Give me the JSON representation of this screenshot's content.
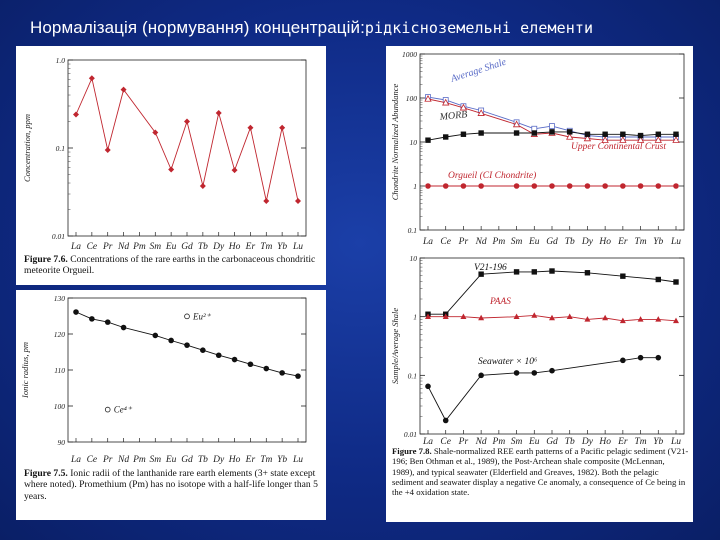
{
  "slide": {
    "title": "Нормалізація (нормування) концентрацій:",
    "subtitle": "рідкісноземельні елементи"
  },
  "figures": {
    "fig76": {
      "caption_label": "Figure 7.6.",
      "caption_text": "Concentrations of the rare earths in the carbonaceous chondritic meteorite Orgueil."
    },
    "fig75": {
      "caption_label": "Figure 7.5.",
      "caption_text": "Ionic radii of the lanthanide rare earth elements (3+ state except where noted). Promethium (Pm) has no isotope with a half-life longer than 5 years."
    },
    "fig78": {
      "caption_label": "Figure 7.8.",
      "caption_text": "Shale-normalized REE earth patterns of a Pacific pelagic sediment (V21-196; Ben Othman et al., 1989), the Post-Archean shale composite (McLennan, 1989), and typical seawater (Elderfield and Greaves, 1982). Both the pelagic sediment and seawater display a negative Ce anomaly, a consequence of Ce being in the +4 oxidation state."
    }
  },
  "chart_data": [
    {
      "id": "fig76",
      "type": "line",
      "ylabel": "Concentration, ppm",
      "yscale": "log",
      "ylim": [
        0.01,
        1.0
      ],
      "yticks": [
        "1.0",
        "0.1",
        "0.01"
      ],
      "categories": [
        "La",
        "Ce",
        "Pr",
        "Nd",
        "Pm",
        "Sm",
        "Eu",
        "Gd",
        "Tb",
        "Dy",
        "Ho",
        "Er",
        "Tm",
        "Yb",
        "Lu"
      ],
      "series": [
        {
          "color": "#c0262f",
          "values": [
            0.24,
            0.62,
            0.095,
            0.46,
            null,
            0.15,
            0.057,
            0.2,
            0.037,
            0.25,
            0.056,
            0.17,
            0.025,
            0.17,
            0.025
          ]
        }
      ]
    },
    {
      "id": "fig75",
      "type": "line",
      "ylabel": "Ionic radius, pm",
      "ylim": [
        90,
        130
      ],
      "yticks": [
        "130",
        "120",
        "110",
        "100",
        "90"
      ],
      "categories": [
        "La",
        "Ce",
        "Pr",
        "Nd",
        "Pm",
        "Sm",
        "Eu",
        "Gd",
        "Tb",
        "Dy",
        "Ho",
        "Er",
        "Tm",
        "Yb",
        "Lu"
      ],
      "series": [
        {
          "color": "#111111",
          "values": [
            126.1,
            124.2,
            123.3,
            121.8,
            null,
            119.6,
            118.2,
            116.9,
            115.5,
            114.1,
            112.9,
            111.6,
            110.4,
            109.2,
            108.3
          ]
        }
      ],
      "annotations": [
        {
          "label": "Eu²⁺",
          "category": "Gd",
          "value": 124.9
        },
        {
          "label": "Ce⁴⁺",
          "category": "Pr",
          "value": 99
        }
      ]
    },
    {
      "id": "fig78a",
      "type": "line",
      "ylabel": "Chondrite Normalized Abundance",
      "yscale": "log",
      "ylim": [
        0.1,
        1000
      ],
      "yticks": [
        "1000",
        "100",
        "10",
        "1",
        "0.1"
      ],
      "categories": [
        "La",
        "Ce",
        "Pr",
        "Nd",
        "Pm",
        "Sm",
        "Eu",
        "Gd",
        "Tb",
        "Dy",
        "Ho",
        "Er",
        "Tm",
        "Yb",
        "Lu"
      ],
      "series": [
        {
          "name": "Average Shale",
          "color": "#5a6cc7",
          "values": [
            105,
            90,
            65,
            52,
            null,
            28,
            20,
            23,
            18,
            14,
            13,
            13,
            13,
            13,
            13
          ]
        },
        {
          "name": "Upper Continental Crust",
          "color": "#c0262f",
          "values": [
            95,
            78,
            60,
            45,
            null,
            25,
            15,
            16,
            13,
            12,
            11,
            11,
            11,
            11,
            11
          ]
        },
        {
          "name": "MORB",
          "color": "#111111",
          "values": [
            11,
            13,
            15,
            16,
            null,
            16,
            16,
            17,
            17,
            15,
            15,
            15,
            14,
            15,
            15
          ]
        },
        {
          "name": "Orgueil (CI Chondrite)",
          "color": "#c0262f",
          "values": [
            1,
            1,
            1,
            1,
            null,
            1,
            1,
            1,
            1,
            1,
            1,
            1,
            1,
            1,
            1
          ]
        }
      ]
    },
    {
      "id": "fig78b",
      "type": "line",
      "ylabel": "Sample/Average Shale",
      "yscale": "log",
      "ylim": [
        0.01,
        10
      ],
      "yticks": [
        "10",
        "1",
        "0.1",
        "0.01"
      ],
      "categories": [
        "La",
        "Ce",
        "Pr",
        "Nd",
        "Pm",
        "Sm",
        "Eu",
        "Gd",
        "Tb",
        "Dy",
        "Ho",
        "Er",
        "Tm",
        "Yb",
        "Lu"
      ],
      "series": [
        {
          "name": "V21-196",
          "color": "#111111",
          "values": [
            1.1,
            1.1,
            null,
            5.3,
            null,
            5.8,
            5.8,
            6.0,
            null,
            5.6,
            null,
            4.9,
            null,
            4.3,
            3.9
          ]
        },
        {
          "name": "PAAS",
          "color": "#c0262f",
          "values": [
            1,
            1,
            1,
            0.95,
            null,
            1,
            1.05,
            0.95,
            1,
            0.9,
            0.95,
            0.85,
            0.9,
            0.9,
            0.85
          ]
        },
        {
          "name": "Seawater × 10⁶",
          "color": "#111111",
          "values": [
            0.065,
            0.017,
            null,
            0.1,
            null,
            0.11,
            0.11,
            0.12,
            null,
            null,
            null,
            0.18,
            0.2,
            0.2,
            null
          ]
        }
      ]
    }
  ]
}
